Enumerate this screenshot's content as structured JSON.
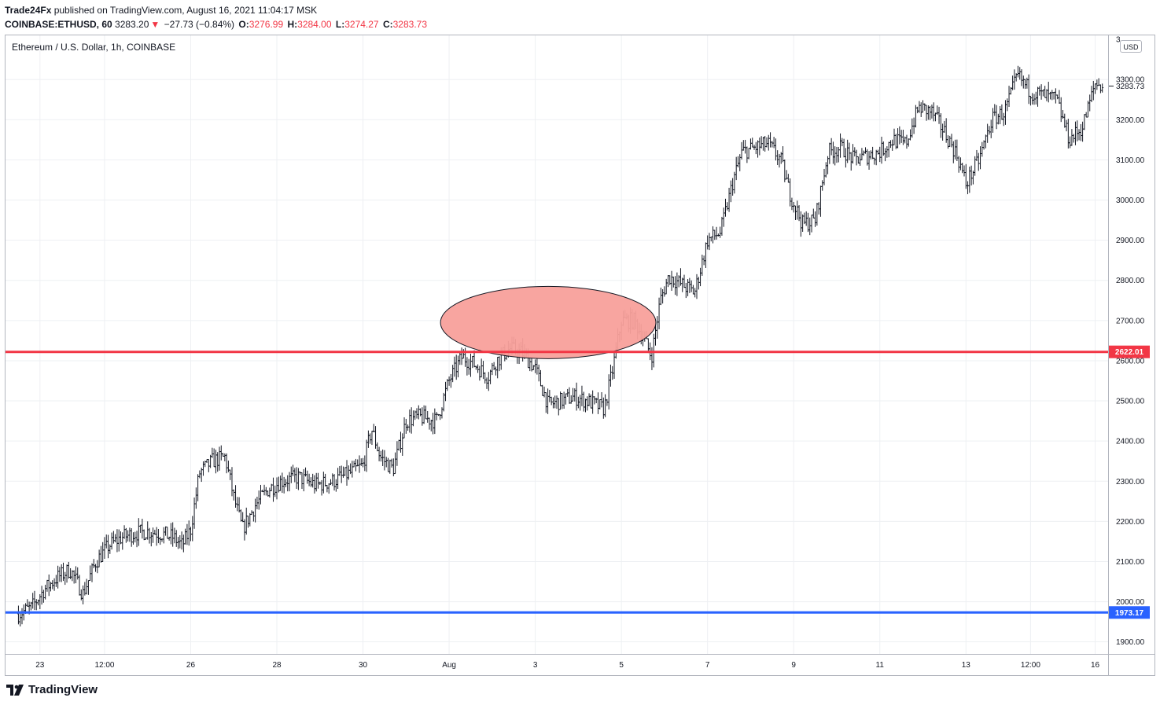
{
  "header": {
    "line1_user": "Trade24Fx",
    "line1_rest": " published on TradingView.com, August 16, 2021 11:04:17 MSK",
    "symbol": "COINBASE:ETHUSD, 60",
    "price": "3283.20",
    "change": "−27.73 (−0.84%)",
    "o_label": "O:",
    "o_value": "3276.99",
    "h_label": "H:",
    "h_value": "3284.00",
    "l_label": "L:",
    "l_value": "3274.27",
    "c_label": "C:",
    "c_value": "3283.73"
  },
  "legend": "Ethereum / U.S. Dollar, 1h, COINBASE",
  "currency_badge": "USD",
  "brand": "TradingView",
  "colors": {
    "red_line": "#f23645",
    "blue_line": "#2962ff",
    "ellipse_fill": "#f8a09b",
    "candle": "#131722"
  },
  "chart_data": {
    "type": "bar",
    "subtype": "ohlc-hourly",
    "y_axis_ticks": [
      1900,
      2000,
      2100,
      2200,
      2300,
      2400,
      2500,
      2600,
      2700,
      2800,
      2900,
      3000,
      3100,
      3200,
      3300
    ],
    "y_tick_labels": [
      "1900.00",
      "2000.00",
      "2100.00",
      "2200.00",
      "2300.00",
      "2400.00",
      "2500.00",
      "2600.00",
      "2700.00",
      "2800.00",
      "2900.00",
      "3000.00",
      "3100.00",
      "3200.00",
      "3300.00"
    ],
    "y_tick_label_cut": "3",
    "ylim": [
      1870,
      3410
    ],
    "x_tick_labels": [
      "23",
      "12:00",
      "26",
      "28",
      "30",
      "Aug",
      "3",
      "5",
      "7",
      "9",
      "11",
      "13",
      "12:00",
      "16"
    ],
    "x_tick_positions": [
      0.5,
      2.0,
      4.0,
      6.0,
      8.0,
      10.0,
      12.0,
      14.0,
      16.0,
      18.0,
      20.0,
      22.0,
      23.5,
      25.0
    ],
    "x_range_days": [
      -0.3,
      25.3
    ],
    "price_path": [
      [
        0.0,
        1970
      ],
      [
        0.3,
        1985
      ],
      [
        0.6,
        2030
      ],
      [
        0.9,
        2060
      ],
      [
        1.2,
        2080
      ],
      [
        1.5,
        2020
      ],
      [
        1.8,
        2100
      ],
      [
        2.1,
        2140
      ],
      [
        2.4,
        2160
      ],
      [
        2.7,
        2170
      ],
      [
        3.0,
        2175
      ],
      [
        3.3,
        2170
      ],
      [
        3.6,
        2160
      ],
      [
        3.8,
        2140
      ],
      [
        4.0,
        2180
      ],
      [
        4.2,
        2320
      ],
      [
        4.5,
        2350
      ],
      [
        4.8,
        2360
      ],
      [
        5.0,
        2260
      ],
      [
        5.2,
        2180
      ],
      [
        5.5,
        2240
      ],
      [
        5.8,
        2280
      ],
      [
        6.1,
        2300
      ],
      [
        6.5,
        2310
      ],
      [
        6.9,
        2290
      ],
      [
        7.3,
        2300
      ],
      [
        7.7,
        2320
      ],
      [
        8.0,
        2340
      ],
      [
        8.2,
        2430
      ],
      [
        8.4,
        2360
      ],
      [
        8.7,
        2330
      ],
      [
        9.0,
        2450
      ],
      [
        9.3,
        2460
      ],
      [
        9.7,
        2450
      ],
      [
        10.0,
        2550
      ],
      [
        10.3,
        2610
      ],
      [
        10.6,
        2590
      ],
      [
        10.9,
        2560
      ],
      [
        11.1,
        2600
      ],
      [
        11.4,
        2630
      ],
      [
        11.7,
        2620
      ],
      [
        12.0,
        2580
      ],
      [
        12.3,
        2490
      ],
      [
        12.6,
        2500
      ],
      [
        12.9,
        2510
      ],
      [
        13.2,
        2500
      ],
      [
        13.6,
        2480
      ],
      [
        13.8,
        2580
      ],
      [
        14.0,
        2700
      ],
      [
        14.3,
        2700
      ],
      [
        14.5,
        2660
      ],
      [
        14.7,
        2610
      ],
      [
        14.9,
        2750
      ],
      [
        15.1,
        2810
      ],
      [
        15.4,
        2790
      ],
      [
        15.7,
        2770
      ],
      [
        16.0,
        2900
      ],
      [
        16.3,
        2920
      ],
      [
        16.6,
        3050
      ],
      [
        16.8,
        3120
      ],
      [
        17.1,
        3130
      ],
      [
        17.4,
        3140
      ],
      [
        17.7,
        3100
      ],
      [
        17.9,
        3020
      ],
      [
        18.2,
        2940
      ],
      [
        18.5,
        2950
      ],
      [
        18.8,
        3120
      ],
      [
        19.1,
        3130
      ],
      [
        19.4,
        3100
      ],
      [
        19.7,
        3110
      ],
      [
        20.0,
        3120
      ],
      [
        20.3,
        3150
      ],
      [
        20.6,
        3140
      ],
      [
        20.9,
        3230
      ],
      [
        21.2,
        3220
      ],
      [
        21.5,
        3170
      ],
      [
        21.8,
        3110
      ],
      [
        22.0,
        3040
      ],
      [
        22.3,
        3100
      ],
      [
        22.6,
        3200
      ],
      [
        22.9,
        3220
      ],
      [
        23.2,
        3310
      ],
      [
        23.5,
        3270
      ],
      [
        23.8,
        3260
      ],
      [
        24.1,
        3250
      ],
      [
        24.4,
        3150
      ],
      [
        24.7,
        3180
      ],
      [
        25.0,
        3290
      ],
      [
        25.2,
        3284
      ]
    ],
    "last_price": 3283.73,
    "last_price_label": "3283.73",
    "horizontal_lines": [
      {
        "price": 2622.01,
        "label": "2622.01",
        "color": "#f23645"
      },
      {
        "price": 1973.17,
        "label": "1973.17",
        "color": "#2962ff"
      }
    ],
    "ellipse_annotation": {
      "x_start_day": 9.8,
      "x_end_day": 14.8,
      "y_top": 2785,
      "y_bottom": 2605,
      "fill": "#f8a09b"
    }
  }
}
